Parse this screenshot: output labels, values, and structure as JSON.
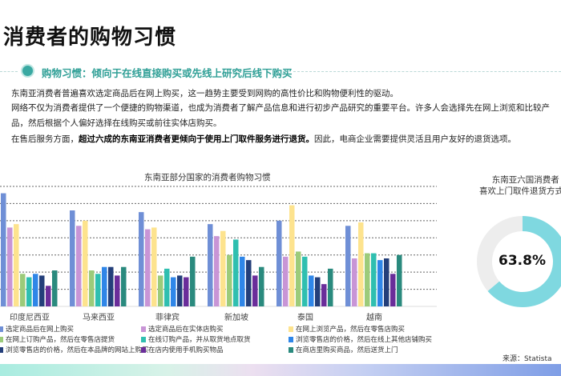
{
  "title": "消费者的购物习惯",
  "section": {
    "heading": "购物习惯：倾向于在线直接购买或先线上研究后线下购买",
    "icon": "shopping-icon"
  },
  "paragraphs": {
    "p1": "东南亚消费者普遍喜欢选定商品后在网上购买，这一趋势主要受到网购的高性价比和购物便利性的驱动。",
    "p2a": "网络不仅为消费者提供了一个便捷的购物渠道，也成为消费者了解产品信息和进行初步产品研究的重要平台。许多人会选择先在网上浏览和比较产",
    "p2b": "品，然后根据个人偏好选择在线购买或前往实体店购买。",
    "p3a": "在售后服务方面，",
    "p3b": "超过六成的东南亚消费者更倾向于使用上门取件服务进行退货。",
    "p3c": "因此，电商企业需要提供灵活且用户友好的退货选项。"
  },
  "chart_data": [
    {
      "type": "bar",
      "title": "东南亚部分国家的消费者购物习惯",
      "grid": true,
      "legend": "bottom",
      "categories": [
        "印度尼西亚",
        "马来西亚",
        "菲律宾",
        "新加坡",
        "泰国",
        "越南"
      ],
      "ylim": [
        0,
        70
      ],
      "series": [
        {
          "name": "选定商品后在网上购买",
          "color": "#6f8fd6",
          "values": [
            66,
            56,
            55,
            48,
            50,
            47
          ]
        },
        {
          "name": "选定商品后在实体店购买",
          "color": "#c895d6",
          "values": [
            46,
            47,
            45,
            41,
            29,
            28
          ]
        },
        {
          "name": "在网上浏览产品，然后在零售店购买",
          "color": "#fde38e",
          "values": [
            48,
            50,
            46,
            44,
            59,
            49
          ]
        },
        {
          "name": "在网上订购产品，然后在零售店提货",
          "color": "#9ccb7a",
          "values": [
            19,
            21,
            18,
            30,
            32,
            31
          ]
        },
        {
          "name": "在线订购产品，并从取货地点取货",
          "color": "#2fbfb0",
          "values": [
            17,
            19,
            22,
            39,
            29,
            31
          ]
        },
        {
          "name": "浏览零售店的价格，然后在线上其他店铺购买",
          "color": "#2f86e8",
          "values": [
            19,
            23,
            17,
            29,
            18,
            27
          ]
        },
        {
          "name": "浏览零售店的价格，然后在本品牌的网站上购买",
          "color": "#243f7a",
          "values": [
            18,
            23,
            18,
            27,
            17,
            28
          ]
        },
        {
          "name": "在店内使用手机购买物品",
          "color": "#6a2d9a",
          "values": [
            12,
            18,
            17,
            18,
            13,
            19
          ]
        },
        {
          "name": "在商店里购买商品，然后送货上门",
          "color": "#2a8a7e",
          "values": [
            21,
            23,
            29,
            23,
            22,
            30
          ]
        }
      ]
    },
    {
      "type": "pie",
      "title_line1": "东南亚六国消费者",
      "title_line2": "喜欢上门取件退货方式的",
      "values": [
        63.8,
        36.2
      ],
      "label": "63.8%",
      "colors": [
        "#7fd8e0",
        "#ededed"
      ]
    }
  ],
  "source": "来源：Statista"
}
